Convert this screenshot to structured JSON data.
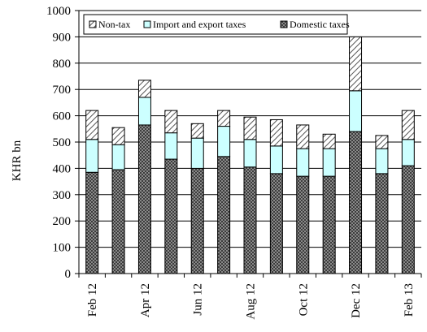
{
  "chart_data": {
    "type": "bar",
    "stacked": true,
    "categories": [
      "Feb 12",
      "Mar 12",
      "Apr 12",
      "May 12",
      "Jun 12",
      "Jul 12",
      "Aug 12",
      "Sep 12",
      "Oct 12",
      "Nov 12",
      "Dec 12",
      "Jan 13",
      "Feb 13"
    ],
    "tick_labels_shown": [
      "Feb 12",
      "",
      "Apr 12",
      "",
      "Jun 12",
      "",
      "Aug 12",
      "",
      "Oct 12",
      "",
      "Dec 12",
      "",
      "Feb 13"
    ],
    "ylabel": "KHR bn",
    "ylim": [
      0,
      1000
    ],
    "yticks": [
      0,
      100,
      200,
      300,
      400,
      500,
      600,
      700,
      800,
      900,
      1000
    ],
    "grid": true,
    "legend_position": "top",
    "series": [
      {
        "name": "Domestic taxes",
        "pattern": "dots",
        "color": "#6e6e6e",
        "values": [
          385,
          395,
          565,
          435,
          400,
          445,
          405,
          380,
          370,
          370,
          540,
          380,
          410
        ]
      },
      {
        "name": "Import and export taxes",
        "pattern": "solid",
        "color": "#ccffff",
        "values": [
          125,
          95,
          105,
          100,
          115,
          115,
          105,
          105,
          105,
          105,
          155,
          95,
          100
        ]
      },
      {
        "name": "Non-tax",
        "pattern": "hatch",
        "color": "#ffffff",
        "values": [
          110,
          65,
          65,
          85,
          55,
          60,
          85,
          100,
          90,
          55,
          205,
          50,
          110
        ]
      }
    ],
    "legend_order": [
      "Non-tax",
      "Import and export taxes",
      "Domestic taxes"
    ]
  }
}
